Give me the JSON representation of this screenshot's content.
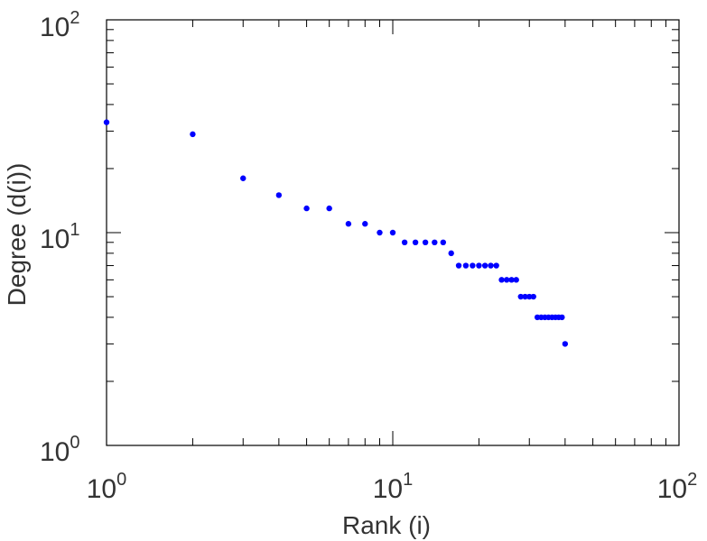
{
  "chart_data": {
    "type": "scatter",
    "xscale": "log",
    "yscale": "log",
    "xlim": [
      1,
      100
    ],
    "ylim": [
      1,
      100
    ],
    "xlabel": "Rank (i)",
    "ylabel": "Degree (d(i))",
    "grid": false,
    "marker_color": "#0000ff",
    "x_ticks": [
      {
        "base": "10",
        "exp": "0",
        "value": 1
      },
      {
        "base": "10",
        "exp": "1",
        "value": 10
      },
      {
        "base": "10",
        "exp": "2",
        "value": 100
      }
    ],
    "y_ticks": [
      {
        "base": "10",
        "exp": "0",
        "value": 1
      },
      {
        "base": "10",
        "exp": "1",
        "value": 10
      },
      {
        "base": "10",
        "exp": "2",
        "value": 100
      }
    ],
    "x": [
      1,
      2,
      3,
      4,
      5,
      6,
      7,
      8,
      9,
      10,
      11,
      12,
      13,
      14,
      15,
      16,
      17,
      18,
      19,
      20,
      21,
      22,
      23,
      24,
      25,
      26,
      27,
      28,
      29,
      30,
      31,
      32,
      33,
      34,
      35,
      36,
      37,
      38,
      39,
      40
    ],
    "y": [
      33,
      29,
      18,
      15,
      13,
      13,
      11,
      11,
      10,
      10,
      9,
      9,
      9,
      9,
      9,
      8,
      7,
      7,
      7,
      7,
      7,
      7,
      7,
      6,
      6,
      6,
      6,
      5,
      5,
      5,
      5,
      4,
      4,
      4,
      4,
      4,
      4,
      4,
      4,
      3
    ]
  }
}
